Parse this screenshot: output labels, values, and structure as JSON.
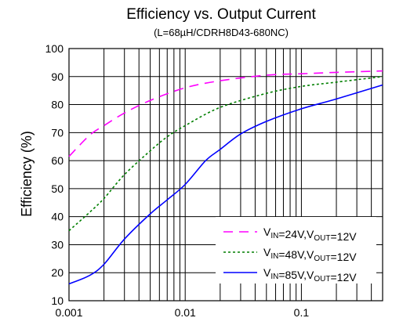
{
  "chart_data": {
    "type": "line",
    "title": "Efficiency vs. Output Current",
    "subtitle": "(L=68µH/CDRH8D43-680NC)",
    "ylabel": "Efficiency (%)",
    "xlabel": "",
    "x_scale": "log",
    "xlim": [
      0.001,
      0.5
    ],
    "ylim": [
      10,
      100
    ],
    "grid": true,
    "legend_position": "bottom-right",
    "x_ticks": [
      0.001,
      0.01,
      0.1
    ],
    "x_tick_labels": [
      "0.001",
      "0.01",
      "0.1"
    ],
    "y_ticks": [
      10,
      20,
      30,
      40,
      50,
      60,
      70,
      80,
      90,
      100
    ],
    "y_tick_labels": [
      "10",
      "20",
      "30",
      "40",
      "50",
      "60",
      "70",
      "80",
      "90",
      "100"
    ],
    "series": [
      {
        "name": "VIN=24V,VOUT=12V",
        "legend": {
          "v1": "V",
          "s1": "IN",
          "t1": "=24V,V",
          "s2": "OUT",
          "t2": "=12V"
        },
        "color": "#ff00ff",
        "dash": "12,8",
        "x": [
          0.001,
          0.0015,
          0.002,
          0.003,
          0.005,
          0.01,
          0.02,
          0.05,
          0.1,
          0.2,
          0.5
        ],
        "y": [
          61.5,
          69,
          72.5,
          77,
          81.5,
          86,
          88.5,
          90.5,
          91,
          91.5,
          92
        ]
      },
      {
        "name": "VIN=48V,VOUT=12V",
        "legend": {
          "v1": "V",
          "s1": "IN",
          "t1": "=48V,V",
          "s2": "OUT",
          "t2": "=12V"
        },
        "color": "#007f00",
        "dash": "3,3",
        "x": [
          0.001,
          0.0015,
          0.002,
          0.003,
          0.005,
          0.007,
          0.01,
          0.02,
          0.05,
          0.1,
          0.2,
          0.5
        ],
        "y": [
          35,
          41.5,
          46.5,
          55,
          63.5,
          68.5,
          72.5,
          79,
          84,
          86.5,
          88,
          90
        ]
      },
      {
        "name": "VIN=85V,VOUT=12V",
        "legend": {
          "v1": "V",
          "s1": "IN",
          "t1": "=85V,V",
          "s2": "OUT",
          "t2": "=12V"
        },
        "color": "#0000ff",
        "dash": "",
        "x": [
          0.001,
          0.0015,
          0.002,
          0.003,
          0.005,
          0.007,
          0.01,
          0.015,
          0.02,
          0.03,
          0.05,
          0.1,
          0.2,
          0.5
        ],
        "y": [
          16,
          19,
          23,
          32,
          41,
          46,
          51.5,
          60,
          64,
          69.5,
          74,
          78.5,
          82,
          87
        ]
      }
    ]
  }
}
